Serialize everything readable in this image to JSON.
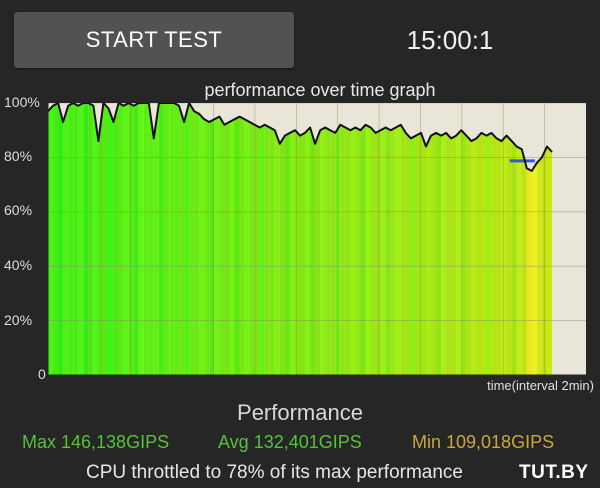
{
  "header": {
    "start_button_label": "START TEST",
    "timer": "15:00:1"
  },
  "graph": {
    "title": "performance over time graph",
    "x_axis_label": "time(interval 2min)",
    "y_ticks": [
      "100%",
      "80%",
      "60%",
      "40%",
      "20%",
      "0"
    ]
  },
  "chart_data": {
    "type": "area",
    "title": "performance over time graph",
    "xlabel": "time(interval 2min)",
    "ylabel": "",
    "ylim": [
      0,
      100
    ],
    "xlim": [
      0,
      100
    ],
    "grid": true,
    "series": [
      {
        "x": [
          0,
          1,
          2,
          3,
          4,
          5,
          6,
          7,
          8,
          9,
          10,
          11,
          12,
          13,
          14,
          15,
          16,
          17,
          18,
          19,
          20,
          21,
          22,
          23,
          24,
          25,
          26,
          27,
          28,
          29,
          30,
          31,
          32,
          33,
          34,
          35,
          36,
          37,
          38,
          39,
          40,
          41,
          42,
          43,
          44,
          45,
          46,
          47,
          48,
          49,
          50,
          51,
          52,
          53,
          54,
          55,
          56,
          57,
          58,
          59,
          60,
          61,
          62,
          63,
          64,
          65,
          66,
          67,
          68,
          69,
          70,
          71,
          72,
          73,
          74,
          75,
          76,
          77,
          78,
          79,
          80,
          81,
          82,
          83,
          84,
          85,
          86,
          87,
          88,
          89,
          90,
          91,
          92,
          93,
          94,
          95,
          96,
          97,
          98,
          99,
          100
        ],
        "values": [
          97,
          99,
          100,
          93,
          99,
          100,
          99,
          100,
          100,
          99,
          86,
          100,
          98,
          93,
          100,
          99,
          100,
          99,
          100,
          100,
          100,
          87,
          100,
          100,
          100,
          100,
          99,
          93,
          100,
          97,
          96,
          94,
          93,
          94,
          95,
          92,
          93,
          94,
          95,
          94,
          93,
          92,
          91,
          92,
          91,
          90,
          85,
          88,
          89,
          90,
          88,
          89,
          91,
          85,
          90,
          91,
          90,
          89,
          92,
          91,
          90,
          91,
          90,
          92,
          91,
          89,
          90,
          91,
          90,
          91,
          92,
          89,
          87,
          88,
          89,
          84,
          88,
          89,
          88,
          89,
          87,
          88,
          90,
          88,
          86,
          87,
          89,
          88,
          89,
          87,
          86,
          88,
          86,
          84,
          83,
          76,
          75,
          78,
          80,
          84,
          82
        ]
      }
    ],
    "throttle_band": {
      "x_start": 91.6,
      "x_end": 96.6,
      "value": 78
    },
    "color_stops": [
      {
        "x": 0,
        "color": "#66ee22"
      },
      {
        "x": 100,
        "color": "#ccee22"
      }
    ]
  },
  "performance": {
    "title": "Performance",
    "max": "Max 146,138GIPS",
    "avg": "Avg 132,401GIPS",
    "min": "Min 109,018GIPS",
    "throttle_text": "CPU throttled to 78% of its max performance",
    "watermark": "TUT.BY"
  }
}
